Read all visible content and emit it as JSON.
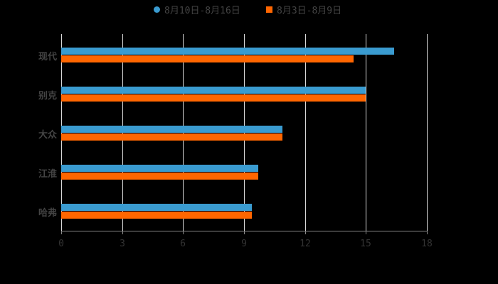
{
  "chart_data": {
    "type": "bar",
    "orientation": "horizontal",
    "title": "",
    "xlabel": "",
    "ylabel": "",
    "categories": [
      "现代",
      "别克",
      "大众",
      "江淮",
      "哈弗"
    ],
    "series": [
      {
        "name": "8月10日-8月16日",
        "color": "#3a9bd0",
        "values": [
          16.4,
          15.0,
          10.9,
          9.7,
          9.4
        ]
      },
      {
        "name": "8月3日-8月9日",
        "color": "#ff6600",
        "values": [
          14.4,
          15.0,
          10.9,
          9.7,
          9.4
        ]
      }
    ],
    "xlim": [
      0,
      18
    ],
    "xticks": [
      "0",
      "3",
      "6",
      "9",
      "12",
      "15",
      "18"
    ],
    "grid": true,
    "legend_position": "top"
  },
  "legend": {
    "items": [
      {
        "label": "8月10日-8月16日",
        "color": "#3a9bd0",
        "marker": "circle"
      },
      {
        "label": "8月3日-8月9日",
        "color": "#ff6600",
        "marker": "square"
      }
    ]
  }
}
